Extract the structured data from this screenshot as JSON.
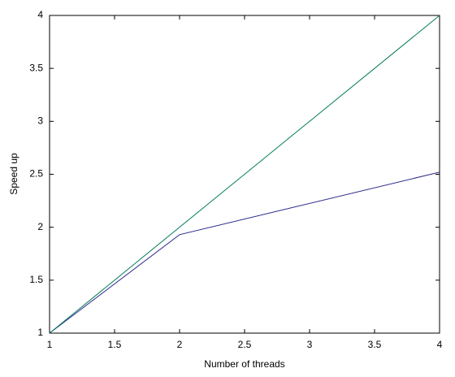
{
  "chart_data": {
    "type": "line",
    "x_label": "Number of threads",
    "y_label": "Speed up",
    "x": [
      1,
      2,
      4
    ],
    "series": [
      {
        "color": "#2b2b8c",
        "values": [
          1,
          1.93,
          2.52
        ]
      },
      {
        "color": "#007a5a",
        "values": [
          1,
          2,
          4
        ]
      }
    ],
    "xlim": [
      1,
      4
    ],
    "xticks": [
      1,
      1.5,
      2,
      2.5,
      3,
      3.5,
      4
    ],
    "ylim": [
      1,
      4
    ],
    "yticks": [
      1,
      1.5,
      2,
      2.5,
      3,
      3.5,
      4
    ],
    "grid": false
  }
}
